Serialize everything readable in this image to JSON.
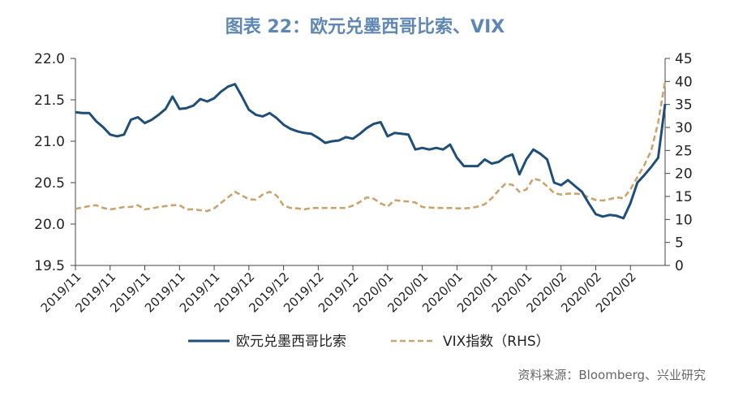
{
  "source": "资料来源：Bloomberg、兴业研究",
  "chart_data": {
    "type": "line",
    "title": "图表 22：欧元兑墨西哥比索、VIX",
    "title_color": "#5f87b3",
    "xlabel": "",
    "ylabel": "",
    "grid": false,
    "legend": "bottom",
    "x": [
      "2019-11-01",
      "2019-11-04",
      "2019-11-05",
      "2019-11-06",
      "2019-11-07",
      "2019-11-08",
      "2019-11-11",
      "2019-11-12",
      "2019-11-13",
      "2019-11-14",
      "2019-11-15",
      "2019-11-18",
      "2019-11-19",
      "2019-11-20",
      "2019-11-21",
      "2019-11-22",
      "2019-11-25",
      "2019-11-26",
      "2019-11-27",
      "2019-11-28",
      "2019-11-29",
      "2019-12-02",
      "2019-12-03",
      "2019-12-04",
      "2019-12-05",
      "2019-12-06",
      "2019-12-09",
      "2019-12-10",
      "2019-12-11",
      "2019-12-12",
      "2019-12-13",
      "2019-12-16",
      "2019-12-17",
      "2019-12-18",
      "2019-12-19",
      "2019-12-20",
      "2019-12-23",
      "2019-12-24",
      "2019-12-25",
      "2019-12-26",
      "2019-12-27",
      "2019-12-30",
      "2019-12-31",
      "2020-01-01",
      "2020-01-02",
      "2020-01-03",
      "2020-01-06",
      "2020-01-07",
      "2020-01-08",
      "2020-01-09",
      "2020-01-10",
      "2020-01-13",
      "2020-01-14",
      "2020-01-15",
      "2020-01-16",
      "2020-01-17",
      "2020-01-20",
      "2020-01-21",
      "2020-01-22",
      "2020-01-23",
      "2020-01-24",
      "2020-01-27",
      "2020-01-28",
      "2020-01-29",
      "2020-01-30",
      "2020-01-31",
      "2020-02-03",
      "2020-02-04",
      "2020-02-05",
      "2020-02-06",
      "2020-02-07",
      "2020-02-10",
      "2020-02-11",
      "2020-02-12",
      "2020-02-13",
      "2020-02-14",
      "2020-02-17",
      "2020-02-18",
      "2020-02-19",
      "2020-02-20",
      "2020-02-21",
      "2020-02-24",
      "2020-02-25",
      "2020-02-26",
      "2020-02-27",
      "2020-02-28"
    ],
    "xticks": [
      {
        "x": "2019-11-01",
        "label": "2019/11"
      },
      {
        "x": "2019-11-08",
        "label": "2019/11"
      },
      {
        "x": "2019-11-15",
        "label": "2019/11"
      },
      {
        "x": "2019-11-22",
        "label": "2019/11"
      },
      {
        "x": "2019-11-29",
        "label": "2019/11"
      },
      {
        "x": "2019-12-06",
        "label": "2019/12"
      },
      {
        "x": "2019-12-13",
        "label": "2019/12"
      },
      {
        "x": "2019-12-20",
        "label": "2019/12"
      },
      {
        "x": "2019-12-27",
        "label": "2019/12"
      },
      {
        "x": "2020-01-03",
        "label": "2020/01"
      },
      {
        "x": "2020-01-10",
        "label": "2020/01"
      },
      {
        "x": "2020-01-17",
        "label": "2020/01"
      },
      {
        "x": "2020-01-24",
        "label": "2020/01"
      },
      {
        "x": "2020-01-31",
        "label": "2020/01"
      },
      {
        "x": "2020-02-07",
        "label": "2020/02"
      },
      {
        "x": "2020-02-14",
        "label": "2020/02"
      },
      {
        "x": "2020-02-21",
        "label": "2020/02"
      }
    ],
    "y_left": {
      "range": [
        19.5,
        22.0
      ],
      "ticks": [
        "19.5",
        "20.0",
        "20.5",
        "21.0",
        "21.5",
        "22.0"
      ]
    },
    "y_right": {
      "range": [
        0,
        45
      ],
      "ticks": [
        "0",
        "5",
        "10",
        "15",
        "20",
        "25",
        "30",
        "35",
        "40",
        "45"
      ]
    },
    "series": [
      {
        "name": "欧元兑墨西哥比索",
        "axis": "left",
        "style": "solid",
        "color": "#1f4e79",
        "values": [
          21.35,
          21.34,
          21.34,
          21.24,
          21.17,
          21.08,
          21.06,
          21.08,
          21.26,
          21.29,
          21.22,
          21.26,
          21.32,
          21.39,
          21.54,
          21.39,
          21.4,
          21.43,
          21.51,
          21.48,
          21.52,
          21.6,
          21.66,
          21.69,
          21.54,
          21.38,
          21.32,
          21.3,
          21.34,
          21.28,
          21.2,
          21.15,
          21.12,
          21.1,
          21.09,
          21.04,
          20.98,
          21.0,
          21.01,
          21.05,
          21.03,
          21.09,
          21.16,
          21.21,
          21.23,
          21.06,
          21.1,
          21.09,
          21.08,
          20.9,
          20.92,
          20.9,
          20.92,
          20.9,
          20.96,
          20.8,
          20.7,
          20.7,
          20.7,
          20.78,
          20.73,
          20.75,
          20.81,
          20.84,
          20.6,
          20.78,
          20.9,
          20.85,
          20.78,
          20.5,
          20.47,
          20.53,
          20.46,
          20.39,
          20.25,
          20.12,
          20.09,
          20.11,
          20.1,
          20.07,
          20.25,
          20.5,
          20.59,
          20.69,
          20.8,
          21.45
        ]
      },
      {
        "name": "VIX指数（RHS）",
        "axis": "right",
        "style": "dashed",
        "color": "#c9a46e",
        "values": [
          12.3,
          12.6,
          12.9,
          13.1,
          12.5,
          12.2,
          12.4,
          12.7,
          12.7,
          13.1,
          12.2,
          12.4,
          12.7,
          12.9,
          13.1,
          13.1,
          12.2,
          12.2,
          12.0,
          11.8,
          12.4,
          13.6,
          14.8,
          16.0,
          15.2,
          14.4,
          14.3,
          15.4,
          16.0,
          15.2,
          13.0,
          12.5,
          12.4,
          12.2,
          12.5,
          12.5,
          12.5,
          12.5,
          12.5,
          12.5,
          13.0,
          13.8,
          14.8,
          14.5,
          13.5,
          12.8,
          14.2,
          14.0,
          13.9,
          13.7,
          12.7,
          12.6,
          12.5,
          12.5,
          12.5,
          12.4,
          12.4,
          12.5,
          12.8,
          13.3,
          14.6,
          16.3,
          17.8,
          17.5,
          16.0,
          16.5,
          18.9,
          18.5,
          17.2,
          15.7,
          15.4,
          15.6,
          15.6,
          15.5,
          14.8,
          14.2,
          14.1,
          14.4,
          14.8,
          14.6,
          16.5,
          19.2,
          21.8,
          25.0,
          31.0,
          40.1
        ]
      }
    ]
  }
}
